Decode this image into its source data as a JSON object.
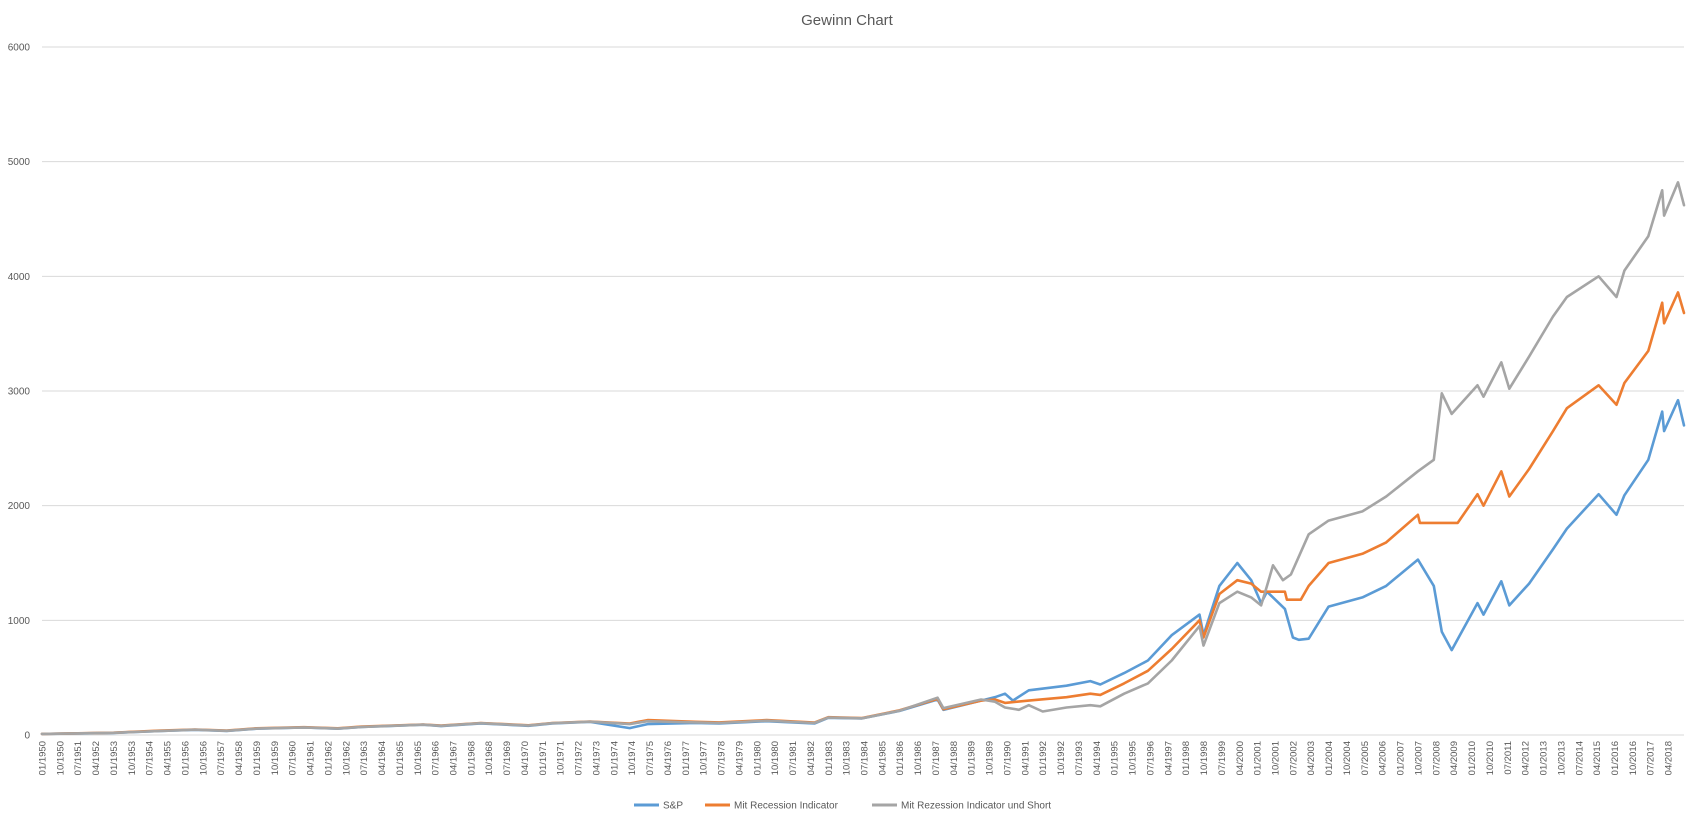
{
  "chart_data": {
    "type": "line",
    "title": "Gewinn Chart",
    "xlabel": "",
    "ylabel": "",
    "ylim": [
      0,
      6000
    ],
    "yticks": [
      0,
      1000,
      2000,
      3000,
      4000,
      5000,
      6000
    ],
    "grid": true,
    "legend_position": "bottom",
    "x_tick_labels": [
      "01/1950",
      "10/1950",
      "07/1951",
      "04/1952",
      "01/1953",
      "10/1953",
      "07/1954",
      "04/1955",
      "01/1956",
      "10/1956",
      "07/1957",
      "04/1958",
      "01/1959",
      "10/1959",
      "07/1960",
      "04/1961",
      "01/1962",
      "10/1962",
      "07/1963",
      "04/1964",
      "01/1965",
      "10/1965",
      "07/1966",
      "04/1967",
      "01/1968",
      "10/1968",
      "07/1969",
      "04/1970",
      "01/1971",
      "10/1971",
      "07/1972",
      "04/1973",
      "01/1974",
      "10/1974",
      "07/1975",
      "04/1976",
      "01/1977",
      "10/1977",
      "07/1978",
      "04/1979",
      "01/1980",
      "10/1980",
      "07/1981",
      "04/1982",
      "01/1983",
      "10/1983",
      "07/1984",
      "04/1985",
      "01/1986",
      "10/1986",
      "07/1987",
      "04/1988",
      "01/1989",
      "10/1989",
      "07/1990",
      "04/1991",
      "01/1992",
      "10/1992",
      "07/1993",
      "04/1994",
      "01/1995",
      "10/1995",
      "07/1996",
      "04/1997",
      "01/1998",
      "10/1998",
      "07/1999",
      "04/2000",
      "01/2001",
      "10/2001",
      "07/2002",
      "04/2003",
      "01/2004",
      "10/2004",
      "07/2005",
      "04/2006",
      "01/2007",
      "10/2007",
      "07/2008",
      "04/2009",
      "01/2010",
      "10/2010",
      "07/2011",
      "04/2012",
      "01/2013",
      "10/2013",
      "07/2014",
      "04/2015",
      "01/2016",
      "10/2016",
      "07/2017",
      "04/2018"
    ],
    "x_start": "1950-01",
    "x_end": "2018-12",
    "series": [
      {
        "name": "S&P",
        "color": "#5b9bd5",
        "points": [
          [
            "1950-01",
            10
          ],
          [
            "1953-01",
            18
          ],
          [
            "1955-01",
            35
          ],
          [
            "1956-06",
            45
          ],
          [
            "1957-10",
            35
          ],
          [
            "1959-01",
            55
          ],
          [
            "1961-01",
            65
          ],
          [
            "1962-06",
            55
          ],
          [
            "1963-06",
            70
          ],
          [
            "1966-01",
            90
          ],
          [
            "1966-10",
            78
          ],
          [
            "1968-06",
            100
          ],
          [
            "1970-06",
            80
          ],
          [
            "1971-06",
            100
          ],
          [
            "1973-01",
            115
          ],
          [
            "1974-09",
            60
          ],
          [
            "1975-06",
            95
          ],
          [
            "1977-06",
            105
          ],
          [
            "1978-06",
            100
          ],
          [
            "1980-06",
            120
          ],
          [
            "1982-06",
            100
          ],
          [
            "1983-01",
            150
          ],
          [
            "1984-06",
            145
          ],
          [
            "1986-01",
            210
          ],
          [
            "1987-08",
            310
          ],
          [
            "1987-11",
            220
          ],
          [
            "1989-06",
            300
          ],
          [
            "1990-01",
            330
          ],
          [
            "1990-06",
            360
          ],
          [
            "1990-10",
            300
          ],
          [
            "1991-06",
            390
          ],
          [
            "1993-01",
            430
          ],
          [
            "1994-01",
            470
          ],
          [
            "1994-06",
            440
          ],
          [
            "1995-06",
            540
          ],
          [
            "1996-06",
            650
          ],
          [
            "1997-06",
            870
          ],
          [
            "1998-08",
            1050
          ],
          [
            "1998-10",
            870
          ],
          [
            "1999-06",
            1300
          ],
          [
            "2000-03",
            1500
          ],
          [
            "2000-10",
            1350
          ],
          [
            "2001-03",
            1150
          ],
          [
            "2001-06",
            1250
          ],
          [
            "2002-03",
            1100
          ],
          [
            "2002-07",
            850
          ],
          [
            "2002-10",
            830
          ],
          [
            "2003-03",
            840
          ],
          [
            "2004-01",
            1120
          ],
          [
            "2005-06",
            1200
          ],
          [
            "2006-06",
            1300
          ],
          [
            "2007-10",
            1530
          ],
          [
            "2008-06",
            1300
          ],
          [
            "2008-10",
            900
          ],
          [
            "2009-03",
            740
          ],
          [
            "2010-04",
            1150
          ],
          [
            "2010-07",
            1050
          ],
          [
            "2011-04",
            1340
          ],
          [
            "2011-08",
            1130
          ],
          [
            "2012-06",
            1320
          ],
          [
            "2013-06",
            1620
          ],
          [
            "2014-01",
            1800
          ],
          [
            "2015-05",
            2100
          ],
          [
            "2016-02",
            1920
          ],
          [
            "2016-06",
            2090
          ],
          [
            "2017-06",
            2400
          ],
          [
            "2018-01",
            2820
          ],
          [
            "2018-02",
            2650
          ],
          [
            "2018-09",
            2920
          ],
          [
            "2018-12",
            2700
          ]
        ]
      },
      {
        "name": "Mit Recession Indicator",
        "color": "#ed7d31",
        "points": [
          [
            "1950-01",
            10
          ],
          [
            "1953-01",
            20
          ],
          [
            "1955-01",
            38
          ],
          [
            "1956-06",
            48
          ],
          [
            "1957-10",
            38
          ],
          [
            "1959-01",
            58
          ],
          [
            "1961-01",
            68
          ],
          [
            "1962-06",
            58
          ],
          [
            "1963-06",
            73
          ],
          [
            "1966-01",
            92
          ],
          [
            "1966-10",
            82
          ],
          [
            "1968-06",
            105
          ],
          [
            "1970-06",
            85
          ],
          [
            "1971-06",
            105
          ],
          [
            "1973-01",
            118
          ],
          [
            "1974-09",
            100
          ],
          [
            "1975-06",
            130
          ],
          [
            "1977-06",
            115
          ],
          [
            "1978-06",
            110
          ],
          [
            "1980-06",
            130
          ],
          [
            "1982-06",
            108
          ],
          [
            "1983-01",
            155
          ],
          [
            "1984-06",
            148
          ],
          [
            "1986-01",
            215
          ],
          [
            "1987-08",
            315
          ],
          [
            "1987-11",
            225
          ],
          [
            "1989-06",
            300
          ],
          [
            "1990-01",
            310
          ],
          [
            "1990-06",
            280
          ],
          [
            "1991-06",
            300
          ],
          [
            "1993-01",
            330
          ],
          [
            "1994-01",
            360
          ],
          [
            "1994-06",
            350
          ],
          [
            "1995-06",
            450
          ],
          [
            "1996-06",
            560
          ],
          [
            "1997-06",
            750
          ],
          [
            "1998-08",
            1000
          ],
          [
            "1998-10",
            850
          ],
          [
            "1999-06",
            1230
          ],
          [
            "2000-03",
            1350
          ],
          [
            "2000-10",
            1320
          ],
          [
            "2001-03",
            1250
          ],
          [
            "2002-03",
            1250
          ],
          [
            "2002-04",
            1180
          ],
          [
            "2002-11",
            1180
          ],
          [
            "2003-03",
            1300
          ],
          [
            "2004-01",
            1500
          ],
          [
            "2005-06",
            1580
          ],
          [
            "2006-06",
            1680
          ],
          [
            "2007-10",
            1920
          ],
          [
            "2007-11",
            1850
          ],
          [
            "2009-06",
            1850
          ],
          [
            "2010-04",
            2100
          ],
          [
            "2010-07",
            2000
          ],
          [
            "2011-04",
            2300
          ],
          [
            "2011-08",
            2080
          ],
          [
            "2012-06",
            2320
          ],
          [
            "2013-06",
            2650
          ],
          [
            "2014-01",
            2850
          ],
          [
            "2015-05",
            3050
          ],
          [
            "2016-02",
            2880
          ],
          [
            "2016-06",
            3070
          ],
          [
            "2017-06",
            3350
          ],
          [
            "2018-01",
            3770
          ],
          [
            "2018-02",
            3590
          ],
          [
            "2018-09",
            3860
          ],
          [
            "2018-12",
            3680
          ]
        ]
      },
      {
        "name": "Mit Rezession Indicator und Short",
        "color": "#a5a5a5",
        "points": [
          [
            "1950-01",
            10
          ],
          [
            "1953-01",
            19
          ],
          [
            "1955-01",
            36
          ],
          [
            "1956-06",
            46
          ],
          [
            "1957-10",
            37
          ],
          [
            "1959-01",
            56
          ],
          [
            "1961-01",
            66
          ],
          [
            "1962-06",
            56
          ],
          [
            "1963-06",
            71
          ],
          [
            "1966-01",
            90
          ],
          [
            "1966-10",
            80
          ],
          [
            "1968-06",
            103
          ],
          [
            "1970-06",
            83
          ],
          [
            "1971-06",
            103
          ],
          [
            "1973-01",
            116
          ],
          [
            "1974-09",
            95
          ],
          [
            "1975-06",
            120
          ],
          [
            "1977-06",
            110
          ],
          [
            "1978-06",
            105
          ],
          [
            "1980-06",
            125
          ],
          [
            "1982-06",
            105
          ],
          [
            "1983-01",
            152
          ],
          [
            "1984-06",
            146
          ],
          [
            "1986-01",
            212
          ],
          [
            "1987-08",
            325
          ],
          [
            "1987-11",
            235
          ],
          [
            "1989-06",
            310
          ],
          [
            "1990-01",
            290
          ],
          [
            "1990-06",
            240
          ],
          [
            "1991-01",
            220
          ],
          [
            "1991-06",
            260
          ],
          [
            "1992-01",
            205
          ],
          [
            "1993-01",
            240
          ],
          [
            "1994-01",
            260
          ],
          [
            "1994-06",
            250
          ],
          [
            "1995-06",
            360
          ],
          [
            "1996-06",
            450
          ],
          [
            "1997-06",
            650
          ],
          [
            "1998-08",
            950
          ],
          [
            "1998-10",
            780
          ],
          [
            "1999-06",
            1150
          ],
          [
            "2000-03",
            1250
          ],
          [
            "2000-10",
            1200
          ],
          [
            "2001-03",
            1130
          ],
          [
            "2001-06",
            1300
          ],
          [
            "2001-09",
            1480
          ],
          [
            "2002-02",
            1350
          ],
          [
            "2002-06",
            1400
          ],
          [
            "2003-03",
            1750
          ],
          [
            "2004-01",
            1870
          ],
          [
            "2005-06",
            1950
          ],
          [
            "2006-06",
            2080
          ],
          [
            "2007-10",
            2300
          ],
          [
            "2008-06",
            2400
          ],
          [
            "2008-10",
            2980
          ],
          [
            "2009-03",
            2800
          ],
          [
            "2010-04",
            3050
          ],
          [
            "2010-07",
            2950
          ],
          [
            "2011-04",
            3250
          ],
          [
            "2011-08",
            3020
          ],
          [
            "2012-06",
            3300
          ],
          [
            "2013-06",
            3650
          ],
          [
            "2014-01",
            3820
          ],
          [
            "2015-05",
            4000
          ],
          [
            "2016-02",
            3820
          ],
          [
            "2016-06",
            4050
          ],
          [
            "2017-06",
            4350
          ],
          [
            "2018-01",
            4750
          ],
          [
            "2018-02",
            4530
          ],
          [
            "2018-09",
            4820
          ],
          [
            "2018-12",
            4620
          ]
        ]
      }
    ]
  }
}
